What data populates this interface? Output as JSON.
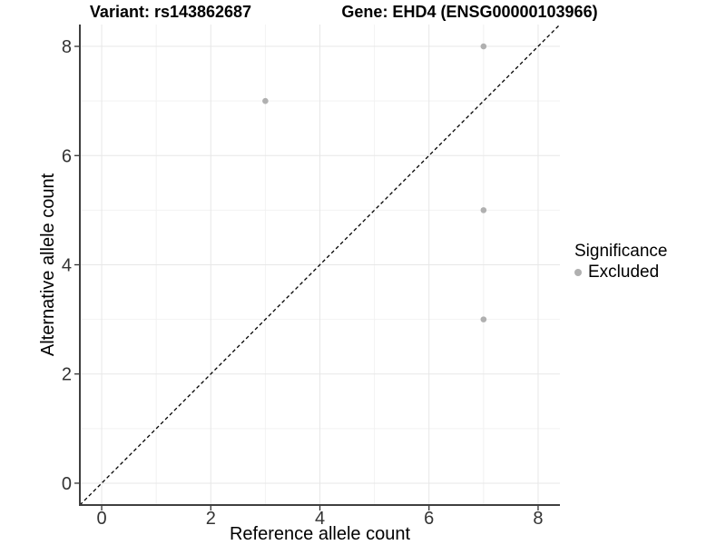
{
  "chart_data": {
    "type": "scatter",
    "titles": {
      "left": "Variant: rs143862687",
      "right": "Gene: EHD4 (ENSG00000103966)"
    },
    "xlabel": "Reference allele count",
    "ylabel": "Alternative allele count",
    "xlim": [
      -0.4,
      8.4
    ],
    "ylim": [
      -0.4,
      8.4
    ],
    "xticks": [
      0,
      2,
      4,
      6,
      8
    ],
    "yticks": [
      0,
      2,
      4,
      6,
      8
    ],
    "xminor": [
      1,
      3,
      5,
      7
    ],
    "yminor": [
      1,
      3,
      5,
      7
    ],
    "grid": "on",
    "reference_line": {
      "type": "identity",
      "slope": 1,
      "intercept": 0,
      "linestyle": "dashed",
      "color": "#000000"
    },
    "series": [
      {
        "name": "Excluded",
        "color": "#b0b0b0",
        "points": [
          [
            3,
            7
          ],
          [
            7,
            8
          ],
          [
            7,
            5
          ],
          [
            7,
            3
          ]
        ]
      }
    ],
    "legend": {
      "title": "Significance",
      "position": "right",
      "items": [
        {
          "label": "Excluded",
          "color": "#b0b0b0"
        }
      ]
    }
  },
  "colors": {
    "grid_major": "#e7e7e7",
    "grid_minor": "#f2f2f2",
    "axis_line": "#3f3f3f",
    "tick_mark": "#333333",
    "tick_text": "#333333",
    "title_text": "#000000"
  }
}
